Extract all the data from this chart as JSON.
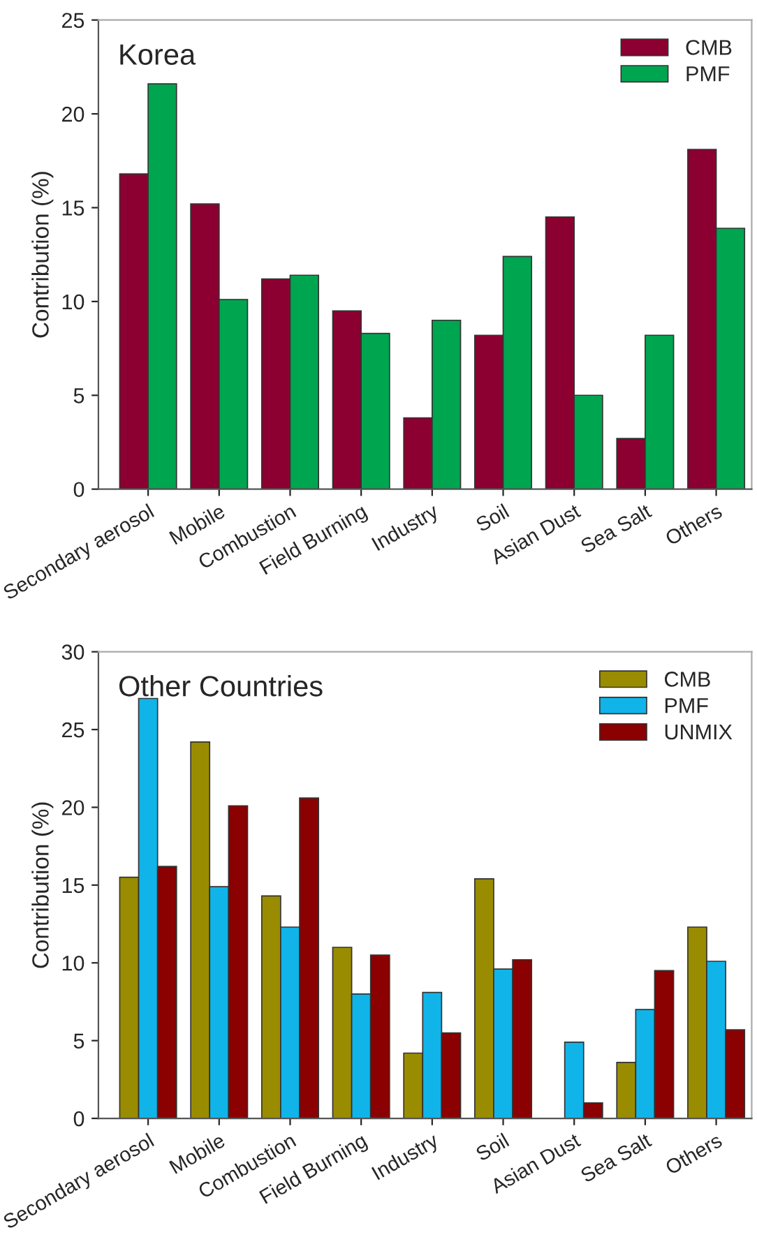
{
  "chart_data": [
    {
      "type": "bar",
      "title": "Korea",
      "ylabel": "Contribution (%)",
      "categories": [
        "Secondary aerosol",
        "Mobile",
        "Combustion",
        "Field Burning",
        "Industry",
        "Soil",
        "Asian Dust",
        "Sea Salt",
        "Others"
      ],
      "series": [
        {
          "name": "CMB",
          "color": "#8b0030",
          "values": [
            16.8,
            15.2,
            11.2,
            9.5,
            3.8,
            8.2,
            14.5,
            2.7,
            18.1
          ]
        },
        {
          "name": "PMF",
          "color": "#00a550",
          "values": [
            21.6,
            10.1,
            11.4,
            8.3,
            9.0,
            12.4,
            5.0,
            8.2,
            13.9
          ]
        }
      ],
      "ylim": [
        0,
        25
      ],
      "yticks": [
        0,
        5,
        10,
        15,
        20,
        25
      ],
      "grid": false,
      "legend": "top right"
    },
    {
      "type": "bar",
      "title": "Other Countries",
      "ylabel": "Contribution (%)",
      "categories": [
        "Secondary aerosol",
        "Mobile",
        "Combustion",
        "Field Burning",
        "Industry",
        "Soil",
        "Asian Dust",
        "Sea Salt",
        "Others"
      ],
      "series": [
        {
          "name": "CMB",
          "color": "#9a8c00",
          "values": [
            15.5,
            24.2,
            14.3,
            11.0,
            4.2,
            15.4,
            null,
            3.6,
            12.3
          ]
        },
        {
          "name": "PMF",
          "color": "#10b4e8",
          "values": [
            27.0,
            14.9,
            12.3,
            8.0,
            8.1,
            9.6,
            4.9,
            7.0,
            10.1
          ]
        },
        {
          "name": "UNMIX",
          "color": "#8b0000",
          "values": [
            16.2,
            20.1,
            20.6,
            10.5,
            5.5,
            10.2,
            1.0,
            9.5,
            5.7
          ]
        }
      ],
      "ylim": [
        0,
        30
      ],
      "yticks": [
        0,
        5,
        10,
        15,
        20,
        25,
        30
      ],
      "grid": false,
      "legend": "top right"
    }
  ]
}
